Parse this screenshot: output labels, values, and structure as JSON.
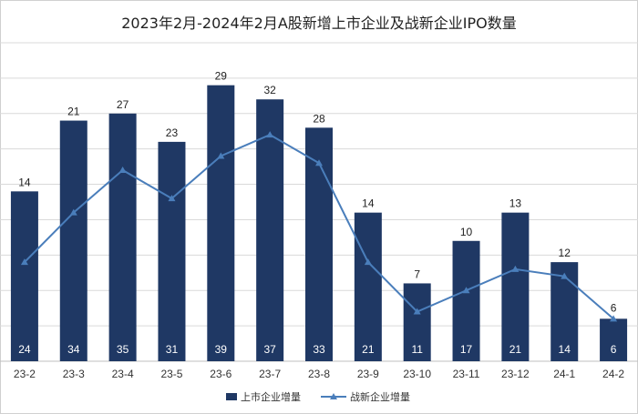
{
  "chart_data": {
    "type": "bar+line",
    "title": "2023年2月-2024年2月A股新增上市企业及战新企业IPO数量",
    "categories": [
      "23-2",
      "23-3",
      "23-4",
      "23-5",
      "23-6",
      "23-7",
      "23-8",
      "23-9",
      "23-10",
      "23-11",
      "23-12",
      "24-1",
      "24-2"
    ],
    "series": [
      {
        "name": "上市企业增量",
        "type": "bar",
        "values": [
          24,
          34,
          35,
          31,
          39,
          37,
          33,
          21,
          11,
          17,
          21,
          14,
          6
        ]
      },
      {
        "name": "战新企业增量",
        "type": "line",
        "values": [
          14,
          21,
          27,
          23,
          29,
          32,
          28,
          14,
          7,
          10,
          13,
          12,
          6
        ]
      }
    ],
    "ylim": [
      0,
      45
    ],
    "grid": true,
    "legend": "bottom-center",
    "colors": {
      "bar": "#1f3864",
      "line": "#4a7ebb",
      "grid": "#d9d9d9"
    }
  }
}
